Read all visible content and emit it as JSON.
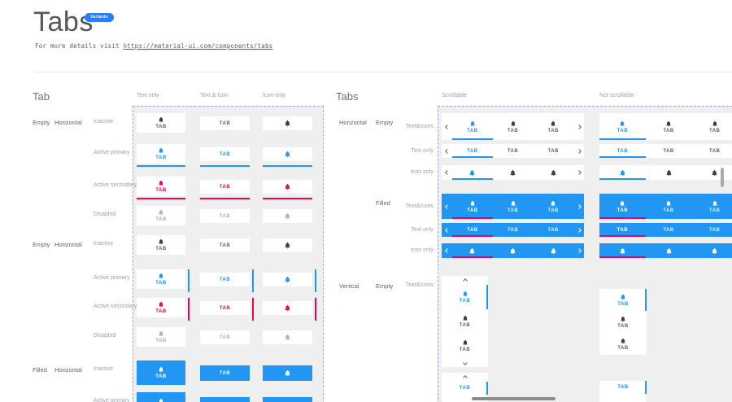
{
  "header": {
    "title": "Tabs",
    "badge": "Variants",
    "subtitle_prefix": "For more details visit ",
    "subtitle_link": "https://material-ui.com/components/tabs"
  },
  "tab_label": "TAB",
  "colors": {
    "primary": "#2196F3",
    "secondary": "#F50057",
    "filled_bg": "#2196F3",
    "inactive_icon": "#3C4043",
    "inactive_text": "#5F6368",
    "disabled_icon": "#B5B5B5",
    "disabled_text": "#AEAEAE",
    "container_bg": "#EFEFF0",
    "dashed_border": "#9CA8E6",
    "card_bg": "#FFFFFF",
    "scrollbar": "#8E8E8E"
  },
  "icons": {
    "tab_icon": "bell-icon",
    "scroll_prev": "chevron-left-icon",
    "scroll_next": "chevron-right-icon",
    "scroll_up": "chevron-up-icon",
    "scroll_down": "chevron-down-icon"
  },
  "left_section": {
    "heading": "Tab",
    "columns": [
      "Text only",
      "Text & Icon",
      "Icon only"
    ],
    "groups": [
      {
        "fill": "Empty",
        "orientation": "Horizontal",
        "indicator": "bottom",
        "states": [
          "Inactive",
          "Active primary",
          "Active secondary",
          "Disabled"
        ]
      },
      {
        "fill": "Empty",
        "orientation": "Horizontal",
        "indicator": "right",
        "states": [
          "Inactive",
          "Active primary",
          "Active secondary",
          "Disabled"
        ]
      },
      {
        "fill": "Filled",
        "orientation": "Horizontal",
        "indicator": "bottom",
        "states": [
          "Inactive",
          "Active primary"
        ]
      }
    ]
  },
  "right_section": {
    "heading": "Tabs",
    "columns": [
      "Scrollable",
      "Not scrollable"
    ],
    "groups": [
      {
        "orientation": "Horizontal",
        "fill": "Empty",
        "rows": [
          "Text&Icons",
          "Text only",
          "Icon only"
        ]
      },
      {
        "orientation": "",
        "fill": "Filled",
        "rows": [
          "Text&Icons",
          "Text only",
          "Icon only"
        ]
      },
      {
        "orientation": "Vertical",
        "fill": "Empty",
        "rows": [
          "Text&Icons"
        ]
      }
    ]
  }
}
